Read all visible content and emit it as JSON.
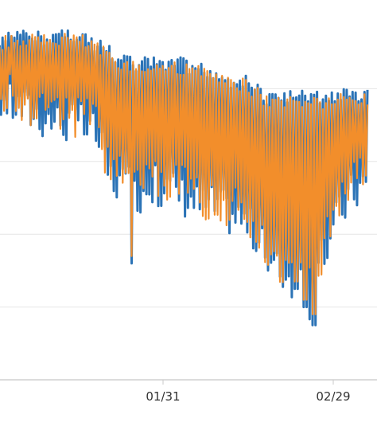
{
  "chart_data": {
    "type": "line",
    "title": "",
    "xlabel": "",
    "ylabel": "",
    "x_ticks": [
      "01/31",
      "02/29"
    ],
    "grid": true,
    "legend": "none",
    "colors": {
      "series_a": "#2b73b6",
      "series_b": "#f28e2b",
      "grid": "#e6e6e6",
      "axis": "#c8c8c8"
    },
    "ylim": [
      0,
      100
    ],
    "x_range_days": [
      0,
      84
    ],
    "series": [
      {
        "key": "a",
        "color": "#2b73b6",
        "envelope": [
          [
            0,
            95,
            72
          ],
          [
            4,
            96,
            70
          ],
          [
            8,
            96,
            68
          ],
          [
            12,
            96,
            66
          ],
          [
            16,
            97,
            65
          ],
          [
            20,
            96,
            64
          ],
          [
            23,
            94,
            62
          ],
          [
            26,
            92,
            50
          ],
          [
            29,
            90,
            48
          ],
          [
            32,
            88,
            45
          ],
          [
            35,
            89,
            48
          ],
          [
            38,
            89,
            47
          ],
          [
            41,
            89,
            46
          ],
          [
            44,
            88,
            44
          ],
          [
            47,
            87,
            42
          ],
          [
            50,
            86,
            42
          ],
          [
            53,
            84,
            40
          ],
          [
            56,
            84,
            38
          ],
          [
            59,
            82,
            34
          ],
          [
            62,
            79,
            25
          ],
          [
            65,
            80,
            24
          ],
          [
            68,
            79,
            20
          ],
          [
            71,
            80,
            16
          ],
          [
            74,
            79,
            28
          ],
          [
            77,
            80,
            38
          ],
          [
            80,
            80,
            45
          ],
          [
            83,
            80,
            48
          ]
        ],
        "dips": [
          [
            31,
            32
          ],
          [
            70,
            20
          ],
          [
            72,
            15
          ],
          [
            68,
            25
          ]
        ]
      },
      {
        "key": "b",
        "color": "#f28e2b",
        "envelope": [
          [
            0,
            94,
            74
          ],
          [
            4,
            95,
            72
          ],
          [
            8,
            95,
            70
          ],
          [
            12,
            95,
            68
          ],
          [
            16,
            96,
            67
          ],
          [
            20,
            95,
            66
          ],
          [
            23,
            93,
            64
          ],
          [
            26,
            91,
            52
          ],
          [
            29,
            89,
            50
          ],
          [
            32,
            87,
            47
          ],
          [
            35,
            88,
            50
          ],
          [
            38,
            88,
            49
          ],
          [
            41,
            88,
            48
          ],
          [
            44,
            87,
            46
          ],
          [
            47,
            86,
            44
          ],
          [
            50,
            85,
            44
          ],
          [
            53,
            83,
            42
          ],
          [
            56,
            83,
            40
          ],
          [
            59,
            81,
            36
          ],
          [
            62,
            78,
            28
          ],
          [
            65,
            79,
            26
          ],
          [
            68,
            78,
            23
          ],
          [
            71,
            79,
            20
          ],
          [
            74,
            78,
            30
          ],
          [
            77,
            79,
            40
          ],
          [
            80,
            79,
            47
          ],
          [
            83,
            79,
            50
          ]
        ],
        "dips": [
          [
            31,
            34
          ],
          [
            70,
            22
          ],
          [
            72,
            18
          ],
          [
            68,
            27
          ]
        ]
      }
    ]
  }
}
